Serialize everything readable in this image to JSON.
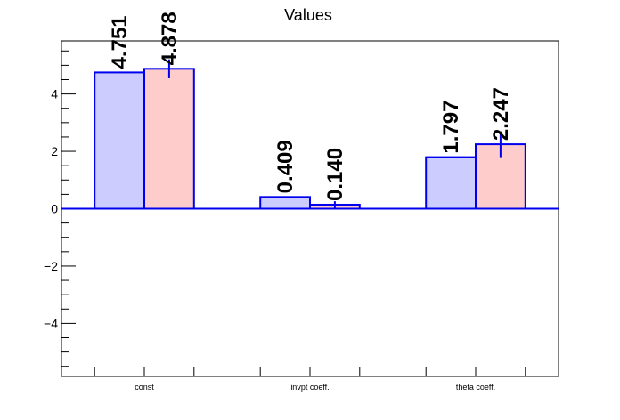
{
  "chart_data": {
    "type": "bar",
    "title": "Values",
    "categories": [
      "const",
      "invpt coeff.",
      "theta coeff."
    ],
    "series": [
      {
        "values": [
          4.751,
          0.409,
          1.797
        ],
        "labels": [
          "4.751",
          "0.409",
          "1.797"
        ],
        "color": "#ccccff"
      },
      {
        "values": [
          4.878,
          0.14,
          2.247
        ],
        "labels": [
          "4.878",
          "0.140",
          "2.247"
        ],
        "errors": [
          0.33,
          0.12,
          0.45
        ],
        "color": "#ffcccc"
      }
    ],
    "ylim": [
      -5.85,
      5.85
    ],
    "yticks": [
      -4,
      -2,
      0,
      2,
      4
    ],
    "ytick_labels": [
      "−4",
      "−2",
      "0",
      "2",
      "4"
    ],
    "edge_color": "#0000ee",
    "grid": false
  }
}
